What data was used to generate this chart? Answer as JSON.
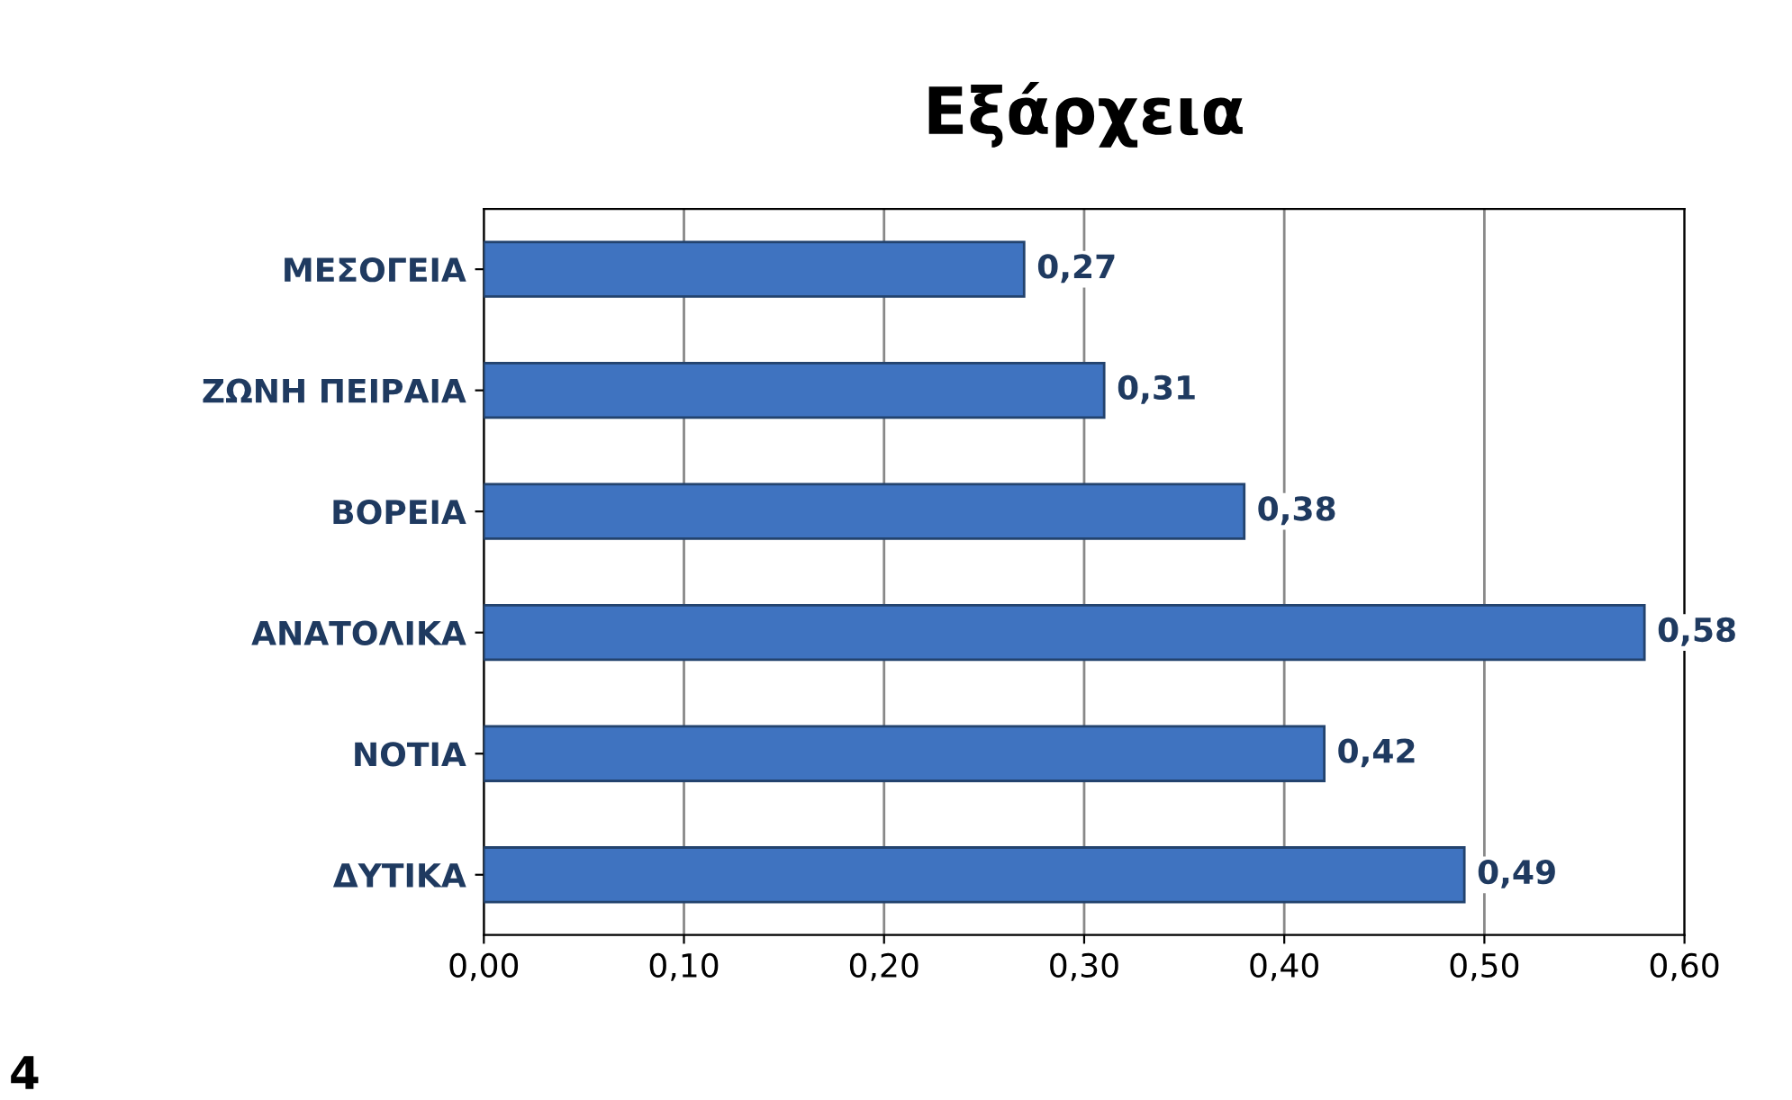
{
  "chart_data": {
    "type": "bar",
    "orientation": "horizontal",
    "title": "Εξάρχεια",
    "categories": [
      "ΜΕΣΟΓΕΙΑ",
      "ΖΩΝΗ ΠΕΙΡΑΙΑ",
      "ΒΟΡΕΙΑ",
      "ΑΝΑΤΟΛΙΚΑ",
      "ΝΟΤΙΑ",
      "ΔΥΤΙΚΑ"
    ],
    "values": [
      0.27,
      0.31,
      0.38,
      0.58,
      0.42,
      0.49
    ],
    "value_labels": [
      "0,27",
      "0,31",
      "0,38",
      "0,58",
      "0,42",
      "0,49"
    ],
    "color": "#3f73c0",
    "xlim": [
      0,
      0.6
    ],
    "xticks": [
      {
        "value": 0,
        "label": "0,00"
      },
      {
        "value": 0.1,
        "label": "0,10"
      },
      {
        "value": 0.2,
        "label": "0,20"
      },
      {
        "value": 0.3,
        "label": "0,30"
      },
      {
        "value": 0.4,
        "label": "0,40"
      },
      {
        "value": 0.5,
        "label": "0,50"
      },
      {
        "value": 0.6,
        "label": "0,60"
      }
    ],
    "grid": "x",
    "annotations": [
      "4"
    ]
  }
}
